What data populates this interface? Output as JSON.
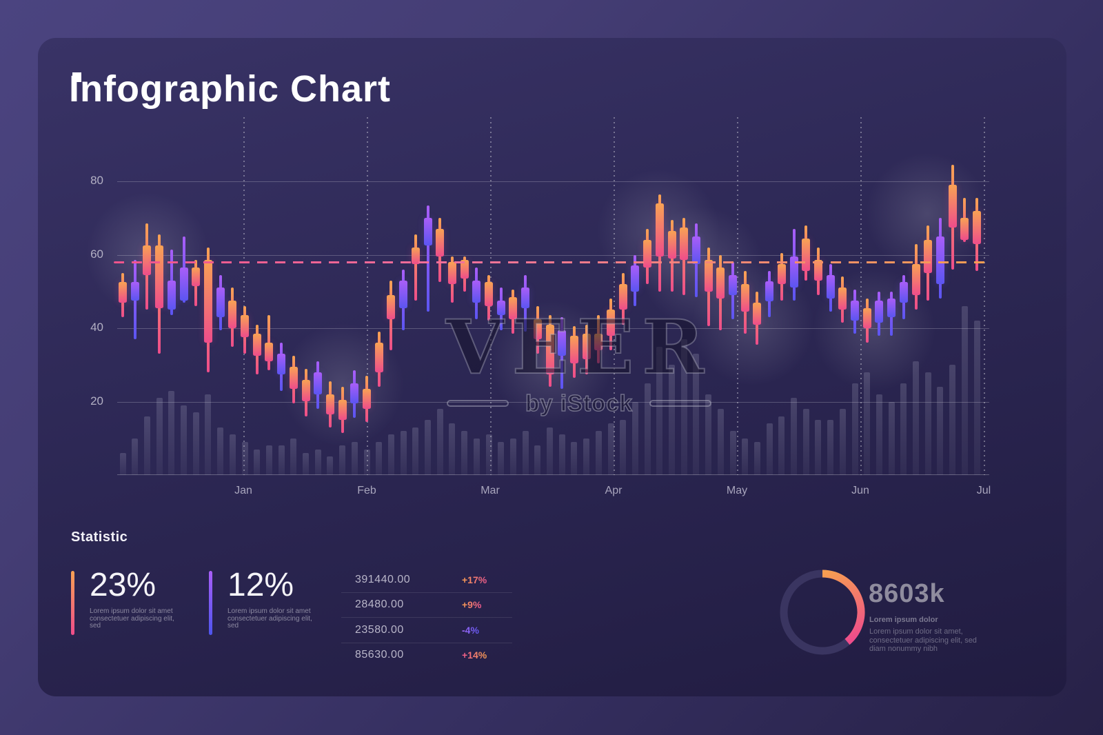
{
  "header": {
    "title": "Infographic Chart"
  },
  "watermark": {
    "main": "VEER",
    "sub": "by iStock"
  },
  "chart_data": {
    "type": "candlestick",
    "title": "Infographic Chart",
    "months": [
      "Jan",
      "Feb",
      "Mar",
      "Apr",
      "May",
      "Jun",
      "Jul"
    ],
    "yticks": [
      80,
      60,
      40,
      20
    ],
    "ylim": [
      0,
      84.3
    ],
    "dashed_reference_value": 58,
    "grid": "horizontal solid lines at yticks, dotted vertical lines at month ticks",
    "colors": {
      "warm_top": "#f8a254",
      "warm_bottom": "#ee4d8b",
      "cool_top": "#a95ef8",
      "cool_bottom": "#5b55f1",
      "dash_left": "#f0548c",
      "dash_right": "#f79e51",
      "volume_bar": "rgba(224,224,242,0.15)"
    },
    "candles_note": "[color(w=orange-pink,c=purple-blue), bodyHigh, bodyLow, wickHigh, wickLow, volume]",
    "candles": [
      [
        "w",
        52.5,
        47,
        55,
        43,
        6
      ],
      [
        "c",
        52.5,
        47.5,
        58.5,
        37,
        10
      ],
      [
        "w",
        62.5,
        54.5,
        68.5,
        45,
        16
      ],
      [
        "w",
        62.5,
        45.5,
        65.5,
        33,
        21
      ],
      [
        "c",
        53,
        45,
        61.5,
        43.5,
        23
      ],
      [
        "c",
        56.5,
        47.5,
        65,
        47,
        19
      ],
      [
        "w",
        56.5,
        51.5,
        58.5,
        46,
        17
      ],
      [
        "w",
        58.5,
        36,
        62,
        28,
        22
      ],
      [
        "c",
        51,
        43,
        54.5,
        39.5,
        13
      ],
      [
        "w",
        47.5,
        40,
        51,
        35,
        11
      ],
      [
        "w",
        43.5,
        37.5,
        46,
        33,
        9
      ],
      [
        "w",
        38.5,
        32.5,
        41,
        27.5,
        7
      ],
      [
        "w",
        36,
        31,
        43.5,
        28.5,
        8
      ],
      [
        "c",
        33,
        27.5,
        36,
        23,
        8
      ],
      [
        "w",
        29.5,
        23.5,
        32.5,
        19.5,
        10
      ],
      [
        "w",
        26,
        20,
        29,
        16,
        6
      ],
      [
        "c",
        28,
        22,
        31,
        18,
        7
      ],
      [
        "w",
        22,
        16.5,
        25.5,
        13,
        5
      ],
      [
        "w",
        20.5,
        15,
        24,
        11.5,
        8
      ],
      [
        "c",
        25,
        19.5,
        28.5,
        15.5,
        9
      ],
      [
        "w",
        23.5,
        18,
        27,
        14.5,
        7
      ],
      [
        "w",
        36,
        28,
        39,
        24,
        9
      ],
      [
        "w",
        49,
        42.5,
        53,
        34,
        11
      ],
      [
        "c",
        53,
        45.5,
        56,
        39.5,
        12
      ],
      [
        "w",
        62,
        57.5,
        65.5,
        47.5,
        13
      ],
      [
        "c",
        70,
        62.5,
        73.5,
        44.5,
        15
      ],
      [
        "w",
        67,
        59.5,
        70,
        52.5,
        18
      ],
      [
        "w",
        58,
        52,
        59.5,
        47,
        14
      ],
      [
        "w",
        58.5,
        53.5,
        59.5,
        50,
        12
      ],
      [
        "c",
        53,
        47,
        56.5,
        42.5,
        10
      ],
      [
        "w",
        52.5,
        46,
        54.5,
        42,
        11
      ],
      [
        "c",
        47.5,
        43.5,
        51,
        39.5,
        9
      ],
      [
        "w",
        48.5,
        42.5,
        50.5,
        38.5,
        10
      ],
      [
        "c",
        51,
        45.5,
        54.5,
        39,
        12
      ],
      [
        "w",
        42.5,
        37,
        46,
        33,
        8
      ],
      [
        "w",
        41,
        27.5,
        43.5,
        24,
        13
      ],
      [
        "c",
        39.5,
        32.5,
        43,
        23.5,
        11
      ],
      [
        "w",
        38,
        30.5,
        40.5,
        26.5,
        9
      ],
      [
        "w",
        38.5,
        31.5,
        41,
        27.5,
        10
      ],
      [
        "w",
        38.5,
        34,
        43.5,
        30.5,
        12
      ],
      [
        "w",
        45,
        38,
        48,
        34,
        14
      ],
      [
        "w",
        52,
        45,
        55,
        41,
        15
      ],
      [
        "c",
        57,
        50,
        60,
        46,
        20
      ],
      [
        "w",
        64,
        56.5,
        67,
        52,
        25
      ],
      [
        "w",
        74,
        59.5,
        76.5,
        50,
        35
      ],
      [
        "w",
        66.5,
        59,
        69.5,
        50,
        30
      ],
      [
        "w",
        67.5,
        58.5,
        70,
        49,
        37
      ],
      [
        "c",
        65,
        57.5,
        68.5,
        48.5,
        33
      ],
      [
        "w",
        58.5,
        50,
        62,
        40.5,
        22
      ],
      [
        "w",
        56.5,
        48,
        60,
        39.5,
        18
      ],
      [
        "c",
        54.5,
        49,
        58,
        42.5,
        12
      ],
      [
        "w",
        52,
        44.5,
        55.5,
        38.5,
        10
      ],
      [
        "w",
        47,
        41,
        50,
        35.5,
        9
      ],
      [
        "c",
        52.8,
        47.3,
        55.5,
        43,
        14
      ],
      [
        "w",
        57.5,
        52,
        60.5,
        47.5,
        16
      ],
      [
        "c",
        59.5,
        51,
        67,
        47.5,
        21
      ],
      [
        "w",
        64.5,
        55.5,
        68,
        53,
        18
      ],
      [
        "w",
        58.5,
        53,
        62,
        49,
        15
      ],
      [
        "c",
        54.5,
        48,
        57.5,
        44.5,
        15
      ],
      [
        "w",
        51,
        45,
        54,
        41.5,
        18
      ],
      [
        "c",
        47.5,
        42,
        50.5,
        38.5,
        25
      ],
      [
        "w",
        45.5,
        40,
        48,
        36,
        28
      ],
      [
        "c",
        47.5,
        41.5,
        50,
        38,
        22
      ],
      [
        "c",
        48,
        43,
        50,
        38,
        20
      ],
      [
        "c",
        52.5,
        47,
        54.5,
        42.5,
        25
      ],
      [
        "w",
        57.5,
        49,
        63,
        45,
        31
      ],
      [
        "w",
        64,
        55,
        68,
        47.5,
        28
      ],
      [
        "c",
        65,
        52,
        70,
        48,
        24
      ],
      [
        "w",
        79,
        67.5,
        84.5,
        56,
        30
      ],
      [
        "w",
        70,
        64,
        75.5,
        63.5,
        46
      ],
      [
        "w",
        72,
        63,
        75.5,
        55.5,
        42
      ]
    ],
    "glows": [
      [
        49,
        128
      ],
      [
        332,
        318
      ],
      [
        635,
        285
      ],
      [
        790,
        95
      ],
      [
        853,
        148
      ],
      [
        927,
        230
      ],
      [
        1103,
        238
      ],
      [
        1180,
        70
      ]
    ]
  },
  "statistics": {
    "heading": "Statistic",
    "cards": [
      {
        "value": "23%",
        "description": "Lorem ipsum dolor sit amet consectetuer adipiscing elit, sed",
        "bar_colors": [
          "#f8a254",
          "#ee4d8b"
        ]
      },
      {
        "value": "12%",
        "description": "Lorem ipsum dolor sit amet consectetuer adipiscing elit, sed",
        "bar_colors": [
          "#a95ef8",
          "#4e55ee"
        ]
      }
    ]
  },
  "table": {
    "rows": [
      {
        "value": "391440.00",
        "change": "+17%",
        "tone": "warm"
      },
      {
        "value": "28480.00",
        "change": "+9%",
        "tone": "warm"
      },
      {
        "value": "23580.00",
        "change": "-4%",
        "tone": "purple"
      },
      {
        "value": "85630.00",
        "change": "+14%",
        "tone": "pink"
      }
    ]
  },
  "donut": {
    "value": "8603k",
    "percent": 39,
    "title": "Lorem ipsum dolor",
    "description": "Lorem ipsum dolor sit amet, consectetuer adipiscing elit, sed diam nonummy nibh",
    "arc_colors": [
      "#f79e51",
      "#ee4d8b"
    ],
    "track_color": "#3a3561"
  }
}
